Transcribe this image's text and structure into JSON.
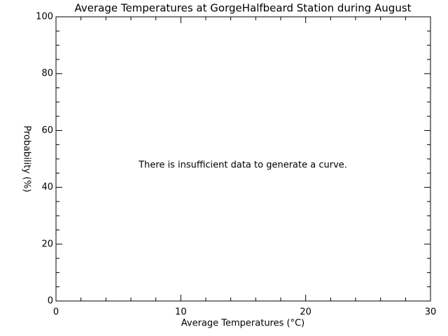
{
  "chart_data": {
    "type": "line",
    "title": "Average Temperatures at GorgeHalfbeard Station during August",
    "xlabel": "Average Temperatures (°C)",
    "ylabel": "Probability (%)",
    "annotation": "There is insufficient data to generate a curve.",
    "xlim": [
      0,
      30
    ],
    "xticks": [
      0,
      10,
      20,
      30
    ],
    "ylim": [
      0,
      100
    ],
    "yticks": [
      0,
      20,
      40,
      60,
      80,
      100
    ],
    "xminor": 5,
    "yminor": 4
  }
}
